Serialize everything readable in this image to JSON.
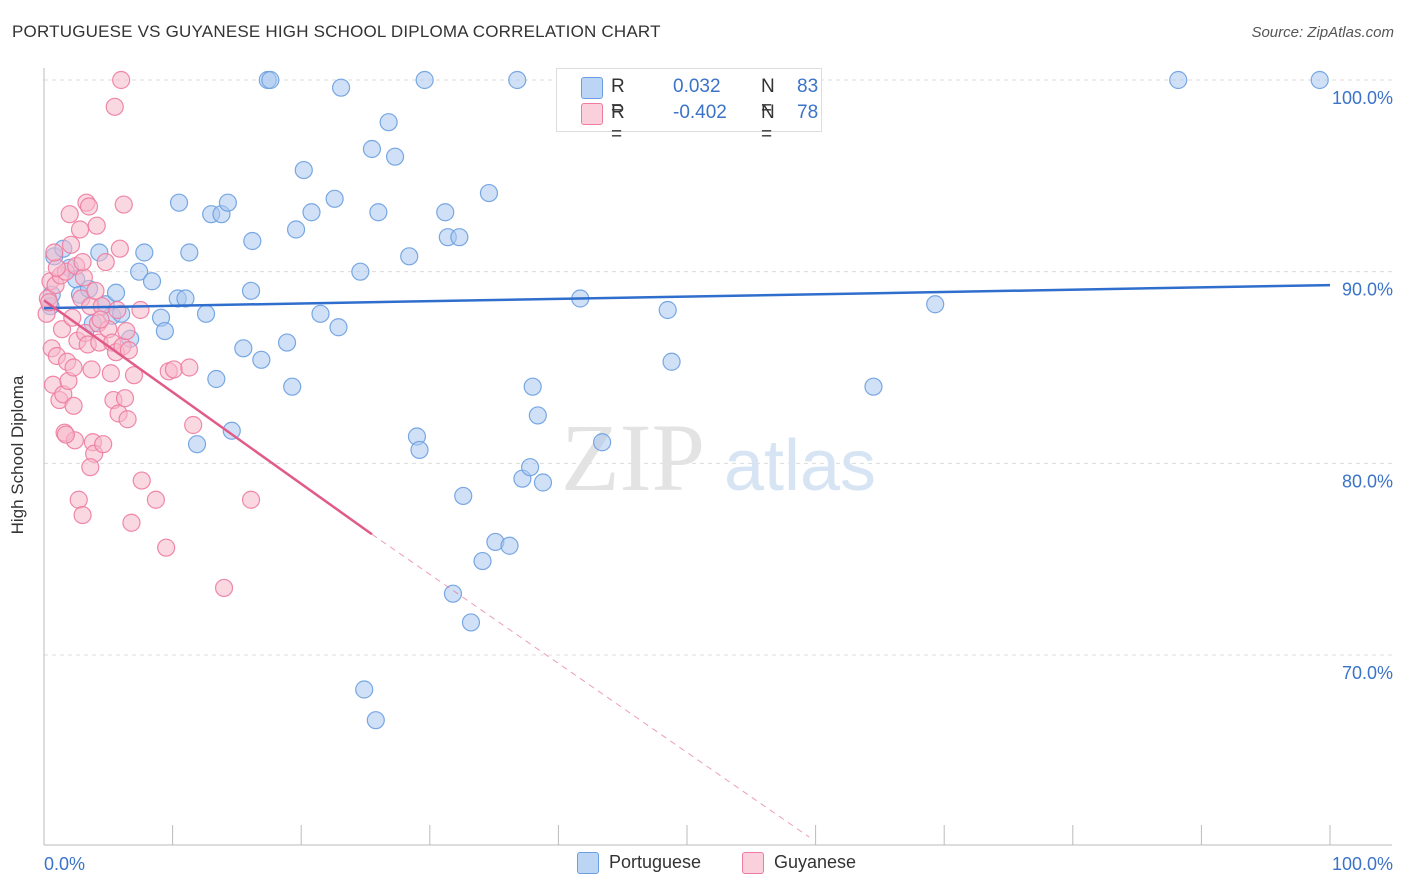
{
  "header": {
    "title": "PORTUGUESE VS GUYANESE HIGH SCHOOL DIPLOMA CORRELATION CHART",
    "source": "Source: ZipAtlas.com"
  },
  "watermark": {
    "zip": "ZIP",
    "atlas": "atlas"
  },
  "legend_top": {
    "rows": [
      {
        "r_label": "R =",
        "r_value": "0.032",
        "n_label": "N =",
        "n_value": "83",
        "color": "#a9c8f0"
      },
      {
        "r_label": "R =",
        "r_value": "-0.402",
        "n_label": "N =",
        "n_value": "78",
        "color": "#f6b8ca"
      }
    ]
  },
  "legend_bottom": {
    "items": [
      {
        "label": "Portuguese",
        "color": "#a9c8f0"
      },
      {
        "label": "Guyanese",
        "color": "#f6b8ca"
      }
    ]
  },
  "chart_data": {
    "type": "scatter",
    "title": "PORTUGUESE VS GUYANESE HIGH SCHOOL DIPLOMA CORRELATION CHART",
    "xlabel": "",
    "ylabel": "High School Diploma",
    "xlim": [
      0,
      100
    ],
    "ylim": [
      60.5,
      101.5
    ],
    "x_tick_labels": [
      "0.0%",
      "100.0%"
    ],
    "y_tick_labels": [
      "100.0%",
      "90.0%",
      "80.0%",
      "70.0%"
    ],
    "y_ticks": [
      100,
      90,
      80,
      70
    ],
    "grid": true,
    "colors": {
      "portuguese": "#6a9ee0",
      "portuguese_fill": "#a9c8f0",
      "guyanese": "#ee7ba0",
      "guyanese_fill": "#f6b8ca",
      "blue_line": "#2f6ecc",
      "pink_line": "#e05a8a",
      "tick_text": "#3b73c8"
    },
    "series": [
      {
        "name": "Portuguese",
        "points": [
          [
            0.6,
            88.8
          ],
          [
            0.8,
            90.8
          ],
          [
            1.5,
            91.2
          ],
          [
            2.0,
            90.2
          ],
          [
            2.5,
            89.6
          ],
          [
            2.8,
            88.8
          ],
          [
            3.5,
            89.1
          ],
          [
            3.8,
            87.3
          ],
          [
            4.3,
            91.0
          ],
          [
            4.8,
            88.3
          ],
          [
            5.3,
            87.7
          ],
          [
            5.6,
            88.9
          ],
          [
            6.0,
            87.8
          ],
          [
            6.7,
            86.5
          ],
          [
            7.4,
            90.0
          ],
          [
            7.8,
            91.0
          ],
          [
            8.4,
            89.5
          ],
          [
            9.1,
            87.6
          ],
          [
            9.4,
            86.9
          ],
          [
            10.4,
            88.6
          ],
          [
            10.5,
            93.6
          ],
          [
            11.0,
            88.6
          ],
          [
            11.3,
            91.0
          ],
          [
            11.9,
            81.0
          ],
          [
            12.6,
            87.8
          ],
          [
            13.0,
            93.0
          ],
          [
            13.8,
            93.0
          ],
          [
            13.4,
            84.4
          ],
          [
            14.3,
            93.6
          ],
          [
            14.6,
            81.7
          ],
          [
            15.5,
            86.0
          ],
          [
            16.1,
            89.0
          ],
          [
            16.2,
            91.6
          ],
          [
            16.9,
            85.4
          ],
          [
            17.4,
            100.0
          ],
          [
            17.6,
            100.0
          ],
          [
            18.9,
            86.3
          ],
          [
            19.3,
            84.0
          ],
          [
            19.6,
            92.2
          ],
          [
            20.2,
            95.3
          ],
          [
            20.8,
            93.1
          ],
          [
            21.5,
            87.8
          ],
          [
            22.6,
            93.8
          ],
          [
            22.9,
            87.1
          ],
          [
            23.1,
            99.6
          ],
          [
            24.6,
            90.0
          ],
          [
            24.9,
            68.2
          ],
          [
            25.5,
            96.4
          ],
          [
            25.8,
            66.6
          ],
          [
            26.0,
            93.1
          ],
          [
            26.8,
            97.8
          ],
          [
            27.3,
            96.0
          ],
          [
            28.4,
            90.8
          ],
          [
            29.0,
            81.4
          ],
          [
            29.2,
            80.7
          ],
          [
            29.6,
            100.0
          ],
          [
            31.2,
            93.1
          ],
          [
            31.4,
            91.8
          ],
          [
            31.8,
            73.2
          ],
          [
            32.3,
            91.8
          ],
          [
            32.6,
            78.3
          ],
          [
            33.2,
            71.7
          ],
          [
            34.1,
            74.9
          ],
          [
            34.6,
            94.1
          ],
          [
            35.1,
            75.9
          ],
          [
            36.2,
            75.7
          ],
          [
            36.8,
            100.0
          ],
          [
            37.2,
            79.2
          ],
          [
            37.8,
            79.8
          ],
          [
            38.0,
            84.0
          ],
          [
            38.4,
            82.5
          ],
          [
            38.8,
            79.0
          ],
          [
            41.7,
            88.6
          ],
          [
            43.4,
            81.1
          ],
          [
            48.3,
            100.0
          ],
          [
            48.5,
            88.0
          ],
          [
            48.8,
            85.3
          ],
          [
            51.4,
            100.0
          ],
          [
            64.5,
            84.0
          ],
          [
            69.3,
            88.3
          ],
          [
            88.2,
            100.0
          ],
          [
            99.2,
            100.0
          ],
          [
            0.5,
            88.2
          ]
        ]
      },
      {
        "name": "Guyanese",
        "points": [
          [
            0.2,
            87.8
          ],
          [
            0.3,
            88.6
          ],
          [
            0.5,
            89.5
          ],
          [
            0.6,
            86.0
          ],
          [
            0.7,
            84.1
          ],
          [
            0.9,
            89.3
          ],
          [
            1.0,
            85.6
          ],
          [
            1.2,
            83.3
          ],
          [
            1.3,
            89.8
          ],
          [
            1.4,
            87.0
          ],
          [
            1.5,
            83.6
          ],
          [
            1.6,
            81.6
          ],
          [
            1.7,
            90.0
          ],
          [
            1.8,
            85.3
          ],
          [
            1.9,
            84.3
          ],
          [
            2.0,
            93.0
          ],
          [
            2.1,
            91.4
          ],
          [
            2.2,
            87.6
          ],
          [
            2.3,
            85.0
          ],
          [
            2.4,
            81.2
          ],
          [
            2.5,
            90.3
          ],
          [
            2.6,
            86.4
          ],
          [
            2.7,
            78.1
          ],
          [
            2.8,
            92.2
          ],
          [
            2.9,
            88.6
          ],
          [
            3.0,
            77.3
          ],
          [
            3.1,
            89.7
          ],
          [
            3.2,
            86.8
          ],
          [
            3.3,
            93.6
          ],
          [
            3.4,
            86.2
          ],
          [
            3.5,
            93.4
          ],
          [
            3.6,
            88.2
          ],
          [
            3.7,
            84.9
          ],
          [
            3.8,
            81.1
          ],
          [
            3.9,
            80.5
          ],
          [
            4.0,
            89.0
          ],
          [
            4.1,
            92.4
          ],
          [
            4.2,
            87.3
          ],
          [
            4.3,
            86.3
          ],
          [
            4.5,
            88.2
          ],
          [
            4.6,
            81.0
          ],
          [
            4.8,
            90.5
          ],
          [
            5.0,
            87.0
          ],
          [
            5.2,
            84.7
          ],
          [
            5.3,
            86.3
          ],
          [
            5.4,
            83.3
          ],
          [
            5.5,
            98.6
          ],
          [
            5.6,
            85.8
          ],
          [
            5.8,
            82.6
          ],
          [
            5.9,
            91.2
          ],
          [
            6.0,
            100.0
          ],
          [
            6.1,
            86.1
          ],
          [
            6.2,
            93.5
          ],
          [
            6.3,
            83.4
          ],
          [
            6.4,
            86.9
          ],
          [
            6.5,
            82.3
          ],
          [
            6.6,
            85.9
          ],
          [
            6.8,
            76.9
          ],
          [
            7.5,
            88.0
          ],
          [
            7.6,
            79.1
          ],
          [
            8.7,
            78.1
          ],
          [
            9.5,
            75.6
          ],
          [
            9.7,
            84.8
          ],
          [
            10.1,
            84.9
          ],
          [
            11.3,
            85.0
          ],
          [
            11.6,
            82.0
          ],
          [
            14.0,
            73.5
          ],
          [
            16.1,
            78.1
          ],
          [
            3.0,
            90.5
          ],
          [
            4.4,
            87.5
          ],
          [
            1.0,
            90.2
          ],
          [
            2.3,
            83.0
          ],
          [
            0.4,
            88.4
          ],
          [
            1.7,
            81.5
          ],
          [
            7.0,
            84.6
          ],
          [
            5.7,
            88.0
          ],
          [
            3.6,
            79.8
          ],
          [
            0.8,
            91.0
          ]
        ]
      }
    ],
    "trend_lines": [
      {
        "series": "Portuguese",
        "x": [
          0,
          100
        ],
        "y": [
          88.1,
          89.3
        ]
      },
      {
        "series": "Guyanese",
        "x": [
          0,
          25.5
        ],
        "y": [
          88.5,
          76.3
        ],
        "dashed_extension_to": [
          59.5,
          60.5
        ]
      }
    ]
  }
}
